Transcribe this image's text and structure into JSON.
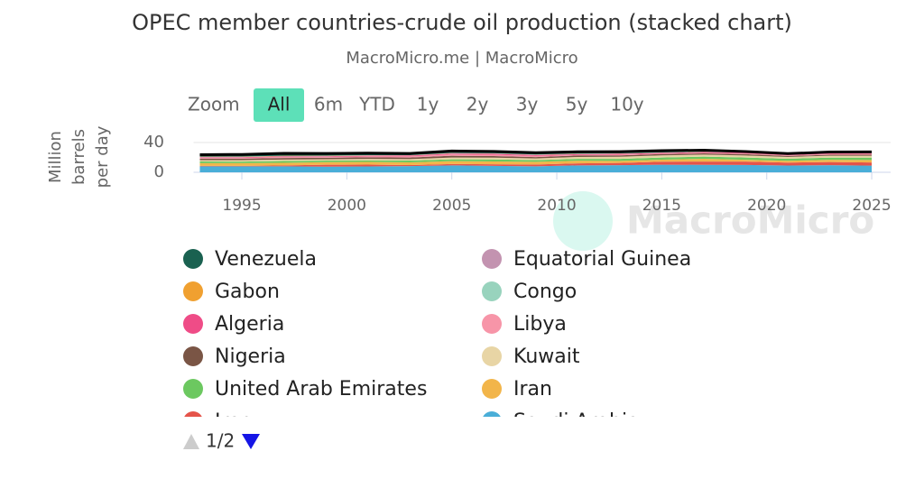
{
  "chart_data": {
    "type": "stacked_area",
    "title": "OPEC member countries-crude oil production (stacked chart)",
    "subtitle": "MacroMicro.me | MacroMicro",
    "watermark": "MacroMicro",
    "y_label": "Million barrels per day",
    "range_selector": {
      "label": "Zoom",
      "buttons": [
        "All",
        "6m",
        "YTD",
        "1y",
        "2y",
        "3y",
        "5y",
        "10y"
      ],
      "selected": 0
    },
    "legend_page": "1/2",
    "x": [
      1993,
      1995,
      1997,
      1999,
      2001,
      2003,
      2005,
      2007,
      2009,
      2011,
      2013,
      2015,
      2017,
      2019,
      2021,
      2023,
      2025
    ],
    "xlim": [
      1992.7,
      2025.9
    ],
    "xticks": [
      1995,
      2000,
      2005,
      2010,
      2015,
      2020,
      2025
    ],
    "ylim": [
      0,
      40
    ],
    "yticks": [
      0,
      40
    ],
    "grid": true,
    "series": [
      {
        "name": "Venezuela",
        "color": "#1a6150",
        "values": [
          2.5,
          2.8,
          3.2,
          2.9,
          2.8,
          2.3,
          2.6,
          2.4,
          2.3,
          2.4,
          2.3,
          2.4,
          1.9,
          0.8,
          0.6,
          0.8,
          0.9
        ]
      },
      {
        "name": "Equatorial Guinea",
        "color": "#c393b0",
        "values": [
          0.1,
          0.1,
          0.1,
          0.1,
          0.2,
          0.2,
          0.3,
          0.3,
          0.3,
          0.3,
          0.2,
          0.2,
          0.1,
          0.1,
          0.1,
          0.1,
          0.1
        ]
      },
      {
        "name": "Gabon",
        "color": "#f0a030",
        "values": [
          0.3,
          0.4,
          0.4,
          0.3,
          0.3,
          0.2,
          0.2,
          0.2,
          0.2,
          0.2,
          0.2,
          0.2,
          0.2,
          0.2,
          0.2,
          0.2,
          0.2
        ]
      },
      {
        "name": "Congo",
        "color": "#98d3bd",
        "values": [
          0.2,
          0.2,
          0.3,
          0.3,
          0.3,
          0.2,
          0.3,
          0.2,
          0.3,
          0.3,
          0.3,
          0.3,
          0.3,
          0.3,
          0.3,
          0.3,
          0.3
        ]
      },
      {
        "name": "Algeria",
        "color": "#ef4c87",
        "values": [
          0.8,
          0.8,
          0.9,
          0.8,
          0.8,
          1.1,
          1.3,
          1.4,
          1.2,
          1.2,
          1.2,
          1.1,
          1.0,
          1.0,
          0.9,
          1.0,
          0.9
        ]
      },
      {
        "name": "Libya",
        "color": "#f795a8",
        "values": [
          1.4,
          1.4,
          1.4,
          1.3,
          1.3,
          1.4,
          1.7,
          1.7,
          1.5,
          0.5,
          0.9,
          0.4,
          0.8,
          1.1,
          1.1,
          1.2,
          1.3
        ]
      },
      {
        "name": "Nigeria",
        "color": "#7a5545",
        "values": [
          1.9,
          1.9,
          2.1,
          2.0,
          2.1,
          2.1,
          2.3,
          2.1,
          1.8,
          2.1,
          1.8,
          1.8,
          1.6,
          1.8,
          1.3,
          1.3,
          1.5
        ]
      },
      {
        "name": "Kuwait",
        "color": "#e8d5a5",
        "values": [
          1.9,
          2.0,
          2.0,
          1.9,
          1.9,
          2.1,
          2.5,
          2.5,
          2.3,
          2.5,
          2.8,
          2.8,
          2.7,
          2.7,
          2.4,
          2.6,
          2.5
        ]
      },
      {
        "name": "United Arab Emirates",
        "color": "#6cc860",
        "values": [
          2.2,
          2.2,
          2.3,
          2.1,
          2.1,
          2.3,
          2.4,
          2.6,
          2.3,
          2.5,
          2.8,
          2.9,
          2.9,
          3.1,
          2.7,
          2.9,
          3.2
        ]
      },
      {
        "name": "Iran",
        "color": "#f2b54a",
        "values": [
          3.6,
          3.6,
          3.6,
          3.5,
          3.7,
          3.7,
          3.9,
          3.9,
          3.7,
          3.6,
          2.7,
          2.8,
          3.8,
          2.4,
          2.4,
          3.0,
          3.3
        ]
      },
      {
        "name": "Iraq",
        "color": "#e5544a",
        "values": [
          0.6,
          0.6,
          1.2,
          2.5,
          2.4,
          1.3,
          1.8,
          2.0,
          2.4,
          2.7,
          3.0,
          4.0,
          4.4,
          4.6,
          4.0,
          4.2,
          4.2
        ]
      },
      {
        "name": "Saudi Arabia",
        "color": "#4aaed8",
        "values": [
          8.1,
          8.0,
          8.0,
          7.6,
          7.9,
          8.4,
          9.3,
          8.7,
          8.0,
          9.3,
          9.6,
          10.2,
          10.0,
          9.8,
          9.1,
          9.6,
          9.0
        ]
      }
    ]
  }
}
